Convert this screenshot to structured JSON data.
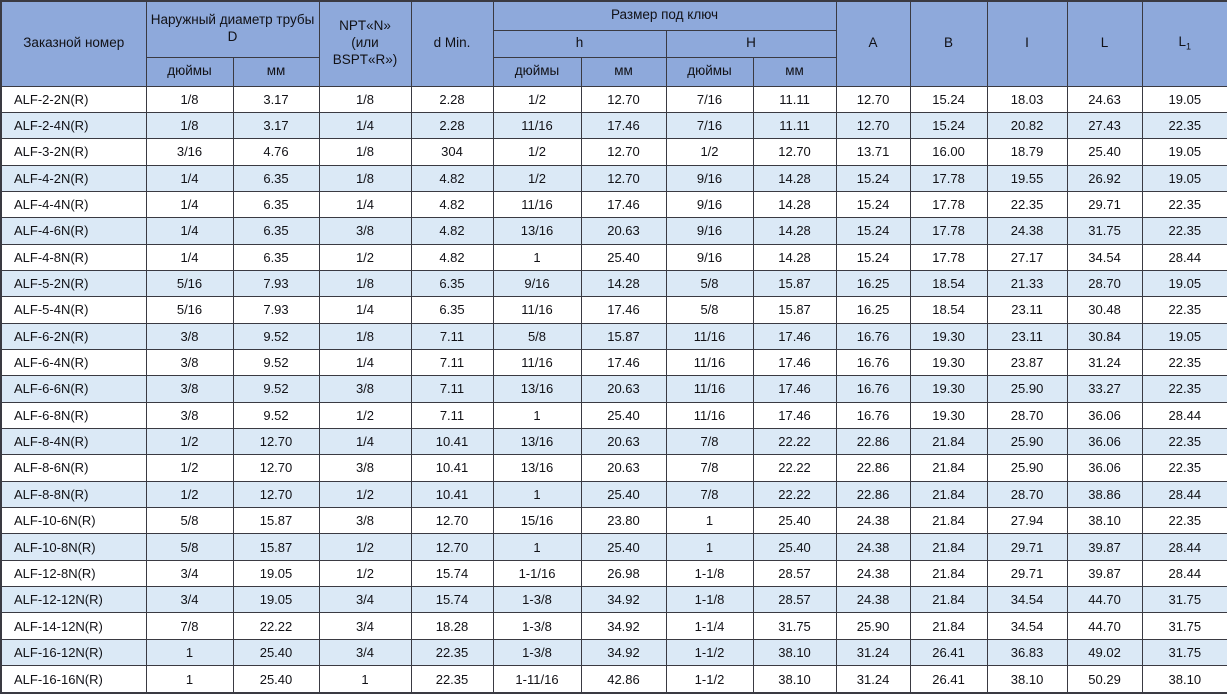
{
  "colors": {
    "header_bg": "#8ea9db",
    "alt_row_bg": "#dbe9f6",
    "border": "#3a3a42"
  },
  "table": {
    "header": {
      "order_number": "Заказной номер",
      "outer_diameter": "Наружный диаметр трубы D",
      "npt_lines": [
        "NPT«N»",
        "(или",
        "BSPT«R»)"
      ],
      "d_min": "d Min.",
      "wrench_size": "Размер под ключ",
      "h_small": "h",
      "h_big": "H",
      "inches": "дюймы",
      "mm": "мм",
      "col_a": "A",
      "col_b": "B",
      "col_i": "I",
      "col_l": "L",
      "col_l1_base": "L",
      "col_l1_sub": "1"
    },
    "rows": [
      [
        "ALF-2-2N(R)",
        "1/8",
        "3.17",
        "1/8",
        "2.28",
        "1/2",
        "12.70",
        "7/16",
        "11.11",
        "12.70",
        "15.24",
        "18.03",
        "24.63",
        "19.05"
      ],
      [
        "ALF-2-4N(R)",
        "1/8",
        "3.17",
        "1/4",
        "2.28",
        "11/16",
        "17.46",
        "7/16",
        "11.11",
        "12.70",
        "15.24",
        "20.82",
        "27.43",
        "22.35"
      ],
      [
        "ALF-3-2N(R)",
        "3/16",
        "4.76",
        "1/8",
        "304",
        "1/2",
        "12.70",
        "1/2",
        "12.70",
        "13.71",
        "16.00",
        "18.79",
        "25.40",
        "19.05"
      ],
      [
        "ALF-4-2N(R)",
        "1/4",
        "6.35",
        "1/8",
        "4.82",
        "1/2",
        "12.70",
        "9/16",
        "14.28",
        "15.24",
        "17.78",
        "19.55",
        "26.92",
        "19.05"
      ],
      [
        "ALF-4-4N(R)",
        "1/4",
        "6.35",
        "1/4",
        "4.82",
        "11/16",
        "17.46",
        "9/16",
        "14.28",
        "15.24",
        "17.78",
        "22.35",
        "29.71",
        "22.35"
      ],
      [
        "ALF-4-6N(R)",
        "1/4",
        "6.35",
        "3/8",
        "4.82",
        "13/16",
        "20.63",
        "9/16",
        "14.28",
        "15.24",
        "17.78",
        "24.38",
        "31.75",
        "22.35"
      ],
      [
        "ALF-4-8N(R)",
        "1/4",
        "6.35",
        "1/2",
        "4.82",
        "1",
        "25.40",
        "9/16",
        "14.28",
        "15.24",
        "17.78",
        "27.17",
        "34.54",
        "28.44"
      ],
      [
        "ALF-5-2N(R)",
        "5/16",
        "7.93",
        "1/8",
        "6.35",
        "9/16",
        "14.28",
        "5/8",
        "15.87",
        "16.25",
        "18.54",
        "21.33",
        "28.70",
        "19.05"
      ],
      [
        "ALF-5-4N(R)",
        "5/16",
        "7.93",
        "1/4",
        "6.35",
        "11/16",
        "17.46",
        "5/8",
        "15.87",
        "16.25",
        "18.54",
        "23.11",
        "30.48",
        "22.35"
      ],
      [
        "ALF-6-2N(R)",
        "3/8",
        "9.52",
        "1/8",
        "7.11",
        "5/8",
        "15.87",
        "11/16",
        "17.46",
        "16.76",
        "19.30",
        "23.11",
        "30.84",
        "19.05"
      ],
      [
        "ALF-6-4N(R)",
        "3/8",
        "9.52",
        "1/4",
        "7.11",
        "11/16",
        "17.46",
        "11/16",
        "17.46",
        "16.76",
        "19.30",
        "23.87",
        "31.24",
        "22.35"
      ],
      [
        "ALF-6-6N(R)",
        "3/8",
        "9.52",
        "3/8",
        "7.11",
        "13/16",
        "20.63",
        "11/16",
        "17.46",
        "16.76",
        "19.30",
        "25.90",
        "33.27",
        "22.35"
      ],
      [
        "ALF-6-8N(R)",
        "3/8",
        "9.52",
        "1/2",
        "7.11",
        "1",
        "25.40",
        "11/16",
        "17.46",
        "16.76",
        "19.30",
        "28.70",
        "36.06",
        "28.44"
      ],
      [
        "ALF-8-4N(R)",
        "1/2",
        "12.70",
        "1/4",
        "10.41",
        "13/16",
        "20.63",
        "7/8",
        "22.22",
        "22.86",
        "21.84",
        "25.90",
        "36.06",
        "22.35"
      ],
      [
        "ALF-8-6N(R)",
        "1/2",
        "12.70",
        "3/8",
        "10.41",
        "13/16",
        "20.63",
        "7/8",
        "22.22",
        "22.86",
        "21.84",
        "25.90",
        "36.06",
        "22.35"
      ],
      [
        "ALF-8-8N(R)",
        "1/2",
        "12.70",
        "1/2",
        "10.41",
        "1",
        "25.40",
        "7/8",
        "22.22",
        "22.86",
        "21.84",
        "28.70",
        "38.86",
        "28.44"
      ],
      [
        "ALF-10-6N(R)",
        "5/8",
        "15.87",
        "3/8",
        "12.70",
        "15/16",
        "23.80",
        "1",
        "25.40",
        "24.38",
        "21.84",
        "27.94",
        "38.10",
        "22.35"
      ],
      [
        "ALF-10-8N(R)",
        "5/8",
        "15.87",
        "1/2",
        "12.70",
        "1",
        "25.40",
        "1",
        "25.40",
        "24.38",
        "21.84",
        "29.71",
        "39.87",
        "28.44"
      ],
      [
        "ALF-12-8N(R)",
        "3/4",
        "19.05",
        "1/2",
        "15.74",
        "1-1/16",
        "26.98",
        "1-1/8",
        "28.57",
        "24.38",
        "21.84",
        "29.71",
        "39.87",
        "28.44"
      ],
      [
        "ALF-12-12N(R)",
        "3/4",
        "19.05",
        "3/4",
        "15.74",
        "1-3/8",
        "34.92",
        "1-1/8",
        "28.57",
        "24.38",
        "21.84",
        "34.54",
        "44.70",
        "31.75"
      ],
      [
        "ALF-14-12N(R)",
        "7/8",
        "22.22",
        "3/4",
        "18.28",
        "1-3/8",
        "34.92",
        "1-1/4",
        "31.75",
        "25.90",
        "21.84",
        "34.54",
        "44.70",
        "31.75"
      ],
      [
        "ALF-16-12N(R)",
        "1",
        "25.40",
        "3/4",
        "22.35",
        "1-3/8",
        "34.92",
        "1-1/2",
        "38.10",
        "31.24",
        "26.41",
        "36.83",
        "49.02",
        "31.75"
      ],
      [
        "ALF-16-16N(R)",
        "1",
        "25.40",
        "1",
        "22.35",
        "1-11/16",
        "42.86",
        "1-1/2",
        "38.10",
        "31.24",
        "26.41",
        "38.10",
        "50.29",
        "38.10"
      ]
    ]
  }
}
